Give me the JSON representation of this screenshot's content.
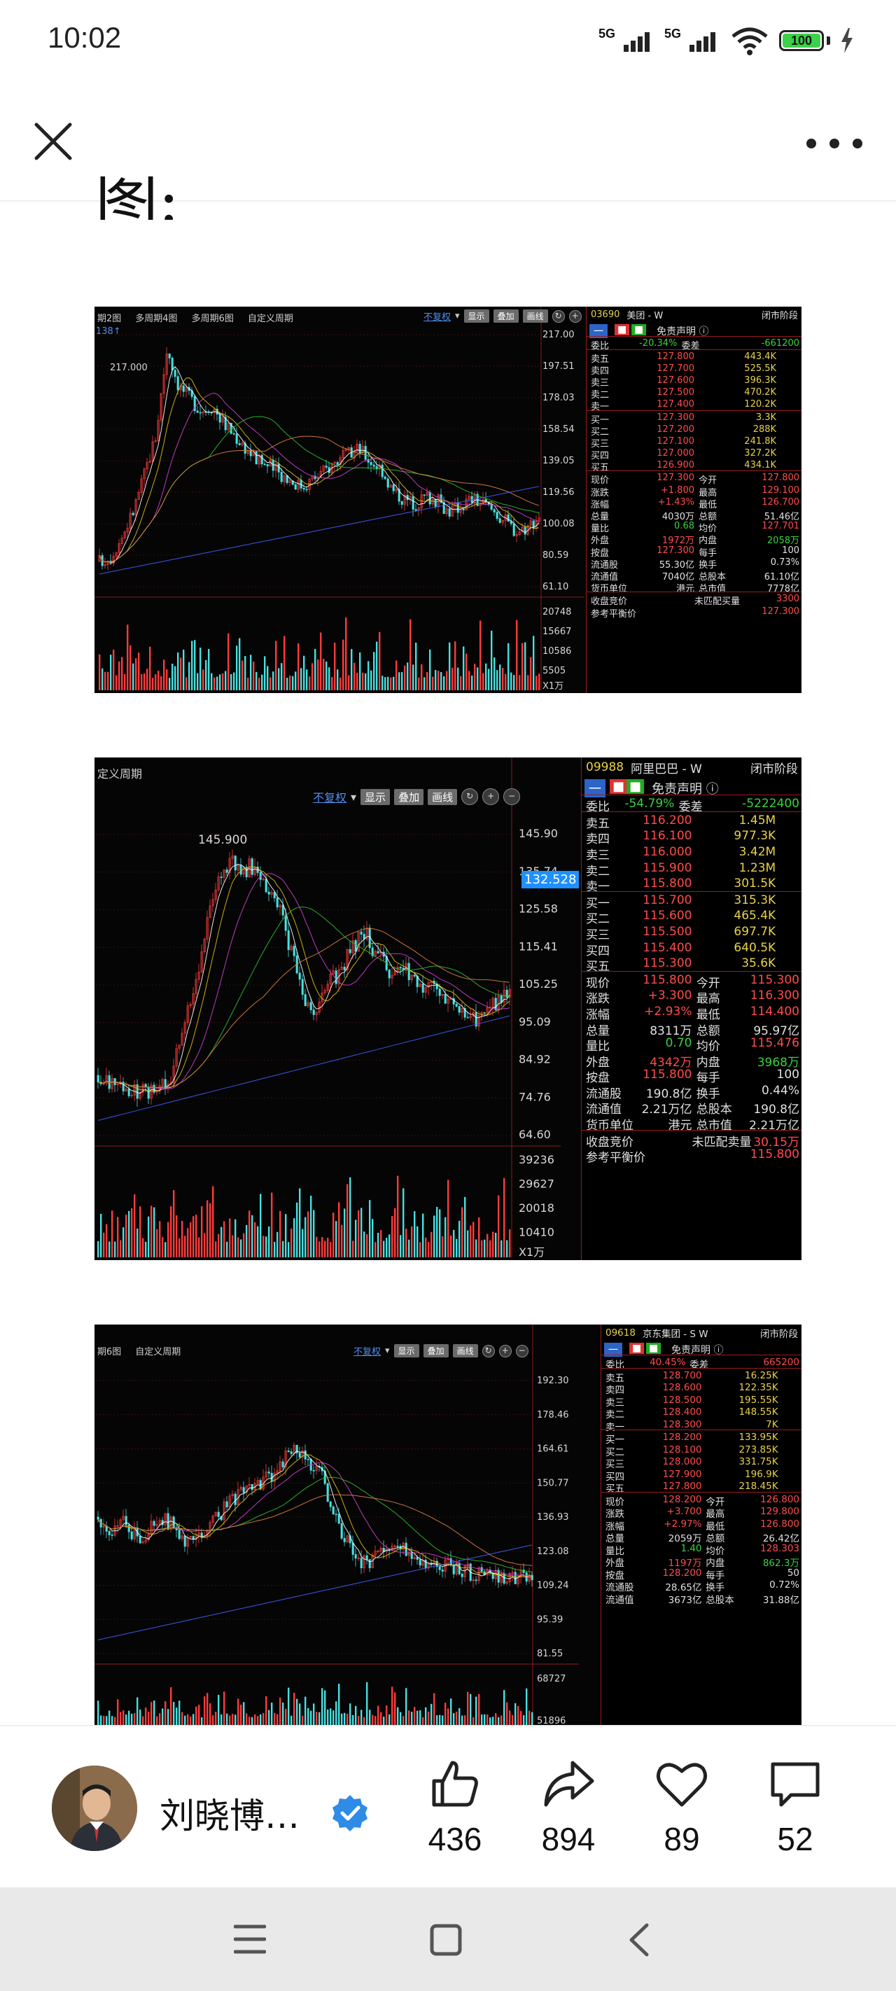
{
  "status_bar": {
    "time": "10:02",
    "signal1": "5G",
    "signal2": "5G",
    "battery": "100",
    "icons": [
      "signal-5g-icon",
      "signal-5g-icon",
      "wifi-icon",
      "battery-icon",
      "charging-icon"
    ]
  },
  "nav": {
    "close_icon": "close-icon",
    "more_icon": "more-icon"
  },
  "article": {
    "cut_text": "图:"
  },
  "charts": [
    {
      "code": "03690",
      "name": "美团 - W",
      "status": "闭市阶段",
      "toolbar": [
        "期2图",
        "多周期4图",
        "多周期6图",
        "自定义周期"
      ],
      "fuquan": "不复权",
      "btns": [
        "显示",
        "叠加",
        "画线"
      ],
      "scale_top_label": "138↑",
      "peak_label": "217.000",
      "price_scale": [
        "217.00",
        "197.51",
        "178.03",
        "158.54",
        "139.05",
        "119.56",
        "100.08",
        "80.59",
        "61.10"
      ],
      "volume_scale": [
        "20748",
        "15667",
        "10586",
        "5505",
        "X1万"
      ],
      "weibi": {
        "label": "委比",
        "value": "-20.34%",
        "label2": "委差",
        "value2": "-661200"
      },
      "asks": [
        {
          "label": "卖五",
          "price": "127.800",
          "vol": "443.4K"
        },
        {
          "label": "卖四",
          "price": "127.700",
          "vol": "525.5K"
        },
        {
          "label": "卖三",
          "price": "127.600",
          "vol": "396.3K"
        },
        {
          "label": "卖二",
          "price": "127.500",
          "vol": "470.2K"
        },
        {
          "label": "卖一",
          "price": "127.400",
          "vol": "120.2K"
        }
      ],
      "bids": [
        {
          "label": "买一",
          "price": "127.300",
          "vol": "3.3K"
        },
        {
          "label": "买二",
          "price": "127.200",
          "vol": "288K"
        },
        {
          "label": "买三",
          "price": "127.100",
          "vol": "241.8K"
        },
        {
          "label": "买四",
          "price": "127.000",
          "vol": "327.2K"
        },
        {
          "label": "买五",
          "price": "126.900",
          "vol": "434.1K"
        }
      ],
      "stats": [
        [
          "现价",
          "127.300",
          "今开",
          "127.800"
        ],
        [
          "涨跌",
          "+1.800",
          "最高",
          "129.100"
        ],
        [
          "涨幅",
          "+1.43%",
          "最低",
          "126.700"
        ],
        [
          "总量",
          "4030万",
          "总额",
          "51.46亿"
        ],
        [
          "量比",
          "0.68",
          "均价",
          "127.701"
        ],
        [
          "外盘",
          "1972万",
          "内盘",
          "2058万"
        ],
        [
          "按盘",
          "127.300",
          "每手",
          "100"
        ],
        [
          "流通股",
          "55.30亿",
          "换手",
          "0.73%"
        ],
        [
          "流通值",
          "7040亿",
          "总股本",
          "61.10亿"
        ],
        [
          "货币单位",
          "港元",
          "总市值",
          "7778亿"
        ]
      ],
      "bottom": [
        [
          "收盘竞价",
          "未匹配买量",
          "3300"
        ],
        [
          "参考平衡价",
          "",
          "127.300"
        ]
      ]
    },
    {
      "code": "09988",
      "name": "阿里巴巴 - W",
      "status": "闭市阶段",
      "toolbar": [
        "定义周期"
      ],
      "fuquan": "不复权",
      "btns": [
        "显示",
        "叠加",
        "画线"
      ],
      "peak_label": "145.900",
      "current_tag": "132.528",
      "price_scale": [
        "145.90",
        "135.74",
        "125.58",
        "115.41",
        "105.25",
        "95.09",
        "84.92",
        "74.76",
        "64.60"
      ],
      "volume_scale": [
        "39236",
        "29627",
        "20018",
        "10410",
        "X1万"
      ],
      "weibi": {
        "label": "委比",
        "value": "-54.79%",
        "label2": "委差",
        "value2": "-5222400"
      },
      "asks": [
        {
          "label": "卖五",
          "price": "116.200",
          "vol": "1.45M"
        },
        {
          "label": "卖四",
          "price": "116.100",
          "vol": "977.3K"
        },
        {
          "label": "卖三",
          "price": "116.000",
          "vol": "3.42M"
        },
        {
          "label": "卖二",
          "price": "115.900",
          "vol": "1.23M"
        },
        {
          "label": "卖一",
          "price": "115.800",
          "vol": "301.5K"
        }
      ],
      "bids": [
        {
          "label": "买一",
          "price": "115.700",
          "vol": "315.3K"
        },
        {
          "label": "买二",
          "price": "115.600",
          "vol": "465.4K"
        },
        {
          "label": "买三",
          "price": "115.500",
          "vol": "697.7K"
        },
        {
          "label": "买四",
          "price": "115.400",
          "vol": "640.5K"
        },
        {
          "label": "买五",
          "price": "115.300",
          "vol": "35.6K"
        }
      ],
      "stats": [
        [
          "现价",
          "115.800",
          "今开",
          "115.300"
        ],
        [
          "涨跌",
          "+3.300",
          "最高",
          "116.300"
        ],
        [
          "涨幅",
          "+2.93%",
          "最低",
          "114.400"
        ],
        [
          "总量",
          "8311万",
          "总额",
          "95.97亿"
        ],
        [
          "量比",
          "0.70",
          "均价",
          "115.476"
        ],
        [
          "外盘",
          "4342万",
          "内盘",
          "3968万"
        ],
        [
          "按盘",
          "115.800",
          "每手",
          "100"
        ],
        [
          "流通股",
          "190.8亿",
          "换手",
          "0.44%"
        ],
        [
          "流通值",
          "2.21万亿",
          "总股本",
          "190.8亿"
        ],
        [
          "货币单位",
          "港元",
          "总市值",
          "2.21万亿"
        ]
      ],
      "bottom": [
        [
          "收盘竞价",
          "未匹配卖量",
          "30.15万"
        ],
        [
          "参考平衡价",
          "",
          "115.800"
        ]
      ]
    },
    {
      "code": "09618",
      "name": "京东集团 - S W",
      "status": "闭市阶段",
      "toolbar": [
        "期6图",
        "自定义周期"
      ],
      "fuquan": "不复权",
      "btns": [
        "显示",
        "叠加",
        "画线"
      ],
      "price_scale": [
        "192.30",
        "178.46",
        "164.61",
        "150.77",
        "136.93",
        "123.08",
        "109.24",
        "95.39",
        "81.55"
      ],
      "volume_scale": [
        "68727",
        "51896"
      ],
      "weibi": {
        "label": "委比",
        "value": "40.45%",
        "label2": "委差",
        "value2": "665200"
      },
      "asks": [
        {
          "label": "卖五",
          "price": "128.700",
          "vol": "16.25K"
        },
        {
          "label": "卖四",
          "price": "128.600",
          "vol": "122.35K"
        },
        {
          "label": "卖三",
          "price": "128.500",
          "vol": "195.55K"
        },
        {
          "label": "卖二",
          "price": "128.400",
          "vol": "148.55K"
        },
        {
          "label": "卖一",
          "price": "128.300",
          "vol": "7K"
        }
      ],
      "bids": [
        {
          "label": "买一",
          "price": "128.200",
          "vol": "133.95K"
        },
        {
          "label": "买二",
          "price": "128.100",
          "vol": "273.85K"
        },
        {
          "label": "买三",
          "price": "128.000",
          "vol": "331.75K"
        },
        {
          "label": "买四",
          "price": "127.900",
          "vol": "196.9K"
        },
        {
          "label": "买五",
          "price": "127.800",
          "vol": "218.45K"
        }
      ],
      "stats": [
        [
          "现价",
          "128.200",
          "今开",
          "126.800"
        ],
        [
          "涨跌",
          "+3.700",
          "最高",
          "129.800"
        ],
        [
          "涨幅",
          "+2.97%",
          "最低",
          "126.800"
        ],
        [
          "总量",
          "2059万",
          "总额",
          "26.42亿"
        ],
        [
          "量比",
          "1.40",
          "均价",
          "128.303"
        ],
        [
          "外盘",
          "1197万",
          "内盘",
          "862.3万"
        ],
        [
          "按盘",
          "128.200",
          "每手",
          "50"
        ],
        [
          "流通股",
          "28.65亿",
          "换手",
          "0.72%"
        ],
        [
          "流通值",
          "3673亿",
          "总股本",
          "31.88亿"
        ]
      ],
      "bottom": []
    }
  ],
  "author": {
    "name": "刘晓博…",
    "verified_icon": "verified-icon"
  },
  "actions": [
    {
      "name": "like",
      "icon": "thumbs-up-icon",
      "count": "436"
    },
    {
      "name": "share",
      "icon": "share-icon",
      "count": "894"
    },
    {
      "name": "favorite",
      "icon": "heart-icon",
      "count": "89"
    },
    {
      "name": "comment",
      "icon": "comment-icon",
      "count": "52"
    }
  ],
  "system_nav": [
    "menu-icon",
    "home-icon",
    "back-icon"
  ]
}
